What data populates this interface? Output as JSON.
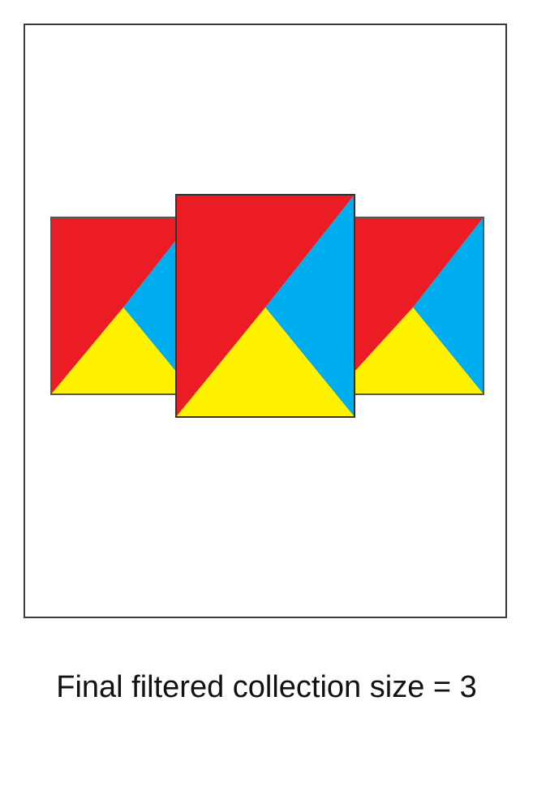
{
  "caption": "Final filtered collection size = 3",
  "colors": {
    "red": "#ec1c24",
    "blue": "#00aeef",
    "yellow": "#fff200",
    "outline": "#555555",
    "frame": "#3a3a3a"
  },
  "tiles": [
    {
      "name": "left-tile"
    },
    {
      "name": "right-tile"
    },
    {
      "name": "center-tile"
    }
  ]
}
